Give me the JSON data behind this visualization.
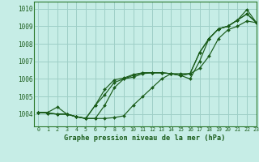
{
  "title": "Graphe pression niveau de la mer (hPa)",
  "background_color": "#c6ede6",
  "grid_color": "#9ecfc7",
  "line_color": "#1a5c1a",
  "border_color": "#2d7a2d",
  "xlim": [
    -0.5,
    23
  ],
  "ylim": [
    1003.3,
    1010.4
  ],
  "yticks": [
    1004,
    1005,
    1006,
    1007,
    1008,
    1009,
    1010
  ],
  "xticks": [
    0,
    1,
    2,
    3,
    4,
    5,
    6,
    7,
    8,
    9,
    10,
    11,
    12,
    13,
    14,
    15,
    16,
    17,
    18,
    19,
    20,
    21,
    22,
    23
  ],
  "series": [
    [
      1004.1,
      1004.05,
      1004.0,
      1004.0,
      1003.85,
      1003.75,
      1003.75,
      1003.75,
      1003.8,
      1003.9,
      1004.5,
      1005.0,
      1005.5,
      1006.0,
      1006.3,
      1006.3,
      1006.3,
      1006.6,
      1007.3,
      1008.3,
      1008.8,
      1009.0,
      1009.3,
      1009.2
    ],
    [
      1004.1,
      1004.05,
      1004.0,
      1004.0,
      1003.85,
      1003.75,
      1004.5,
      1005.1,
      1005.8,
      1006.0,
      1006.2,
      1006.35,
      1006.35,
      1006.35,
      1006.3,
      1006.2,
      1006.3,
      1007.5,
      1008.3,
      1008.85,
      1009.0,
      1009.35,
      1009.7,
      1009.2
    ],
    [
      1004.1,
      1004.05,
      1004.0,
      1004.0,
      1003.85,
      1003.75,
      1004.5,
      1005.4,
      1005.95,
      1006.05,
      1006.25,
      1006.35,
      1006.35,
      1006.35,
      1006.3,
      1006.2,
      1006.3,
      1007.5,
      1008.3,
      1008.85,
      1009.0,
      1009.35,
      1009.7,
      1009.2
    ],
    [
      1004.1,
      1004.1,
      1004.4,
      1004.0,
      1003.85,
      1003.75,
      1003.75,
      1004.5,
      1005.5,
      1006.0,
      1006.1,
      1006.3,
      1006.35,
      1006.35,
      1006.3,
      1006.2,
      1006.0,
      1007.0,
      1008.3,
      1008.85,
      1009.0,
      1009.35,
      1009.95,
      1009.2
    ]
  ]
}
